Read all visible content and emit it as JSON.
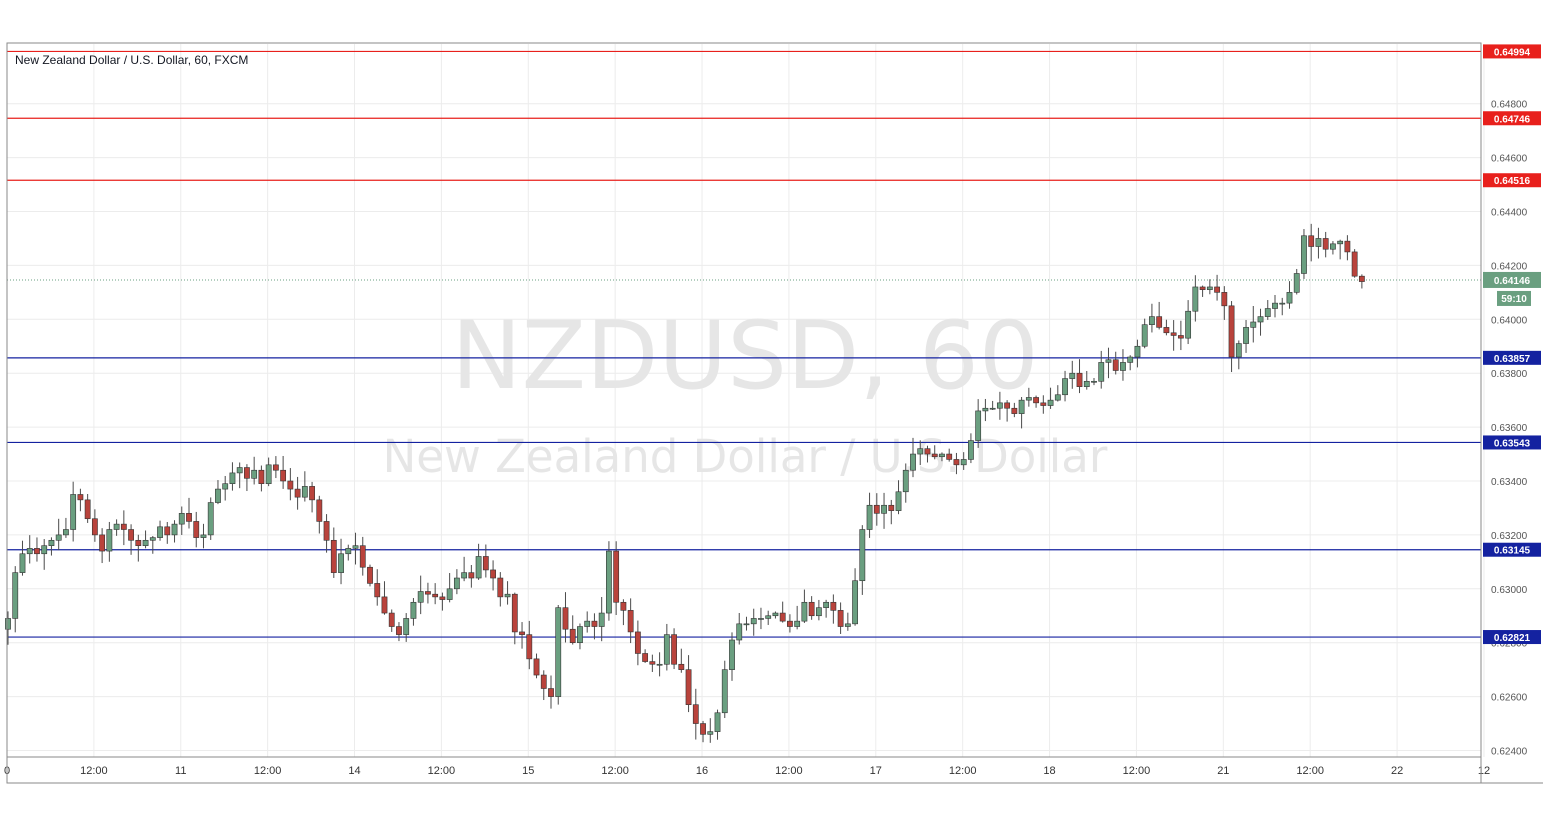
{
  "header": {
    "symbol_title": "New Zealand Dollar / U.S. Dollar, 60, FXCM"
  },
  "watermark": {
    "ticker": "NZDUSD, 60",
    "name": "New Zealand Dollar / U.S. Dollar"
  },
  "colors": {
    "background": "#ffffff",
    "grid": "#ececec",
    "up_candle": "#6a9f80",
    "down_candle": "#b9433c",
    "wick": "#4a4a4a",
    "resistance_line": "#e8201c",
    "support_line": "#1422a0",
    "current_price": "#6a9f80",
    "axis_text": "#555555",
    "watermark": "#e6e6e6"
  },
  "chart_data": {
    "type": "candlestick",
    "title": "New Zealand Dollar / U.S. Dollar, 60, FXCM",
    "timeframe": "60",
    "y_axis": {
      "ylim": [
        0.62385,
        0.6501
      ],
      "ticks": [
        0.624,
        0.626,
        0.628,
        0.63,
        0.632,
        0.634,
        0.636,
        0.638,
        0.64,
        0.642,
        0.644,
        0.646,
        0.648
      ],
      "tick_labels": [
        "0.62400",
        "0.62600",
        "0.62800",
        "0.63000",
        "0.63200",
        "0.63400",
        "0.63600",
        "0.63800",
        "0.64000",
        "0.64200",
        "0.64400",
        "0.64600",
        "0.64800"
      ]
    },
    "x_axis": {
      "tick_labels": [
        "0",
        "12:00",
        "11",
        "12:00",
        "14",
        "12:00",
        "15",
        "12:00",
        "16",
        "12:00",
        "17",
        "12:00",
        "18",
        "12:00",
        "21",
        "12:00",
        "22",
        "12"
      ],
      "tick_positions_in_bars": [
        0,
        12,
        24,
        36,
        48,
        60,
        72,
        84,
        96,
        108,
        120,
        132,
        144,
        156,
        168,
        180,
        192,
        204
      ]
    },
    "resistance_levels": [
      0.64994,
      0.64746,
      0.64516
    ],
    "resistance_labels": [
      "0.64994",
      "0.64746",
      "0.64516"
    ],
    "support_levels": [
      0.63857,
      0.63543,
      0.63145,
      0.62821
    ],
    "support_labels": [
      "0.63857",
      "0.63543",
      "0.63145",
      "0.62821"
    ],
    "current_price": 0.64146,
    "current_price_label": "0.64146",
    "countdown": "59:10",
    "grid": true,
    "close_path": [
      0.6289,
      0.6306,
      0.6313,
      0.6315,
      0.6313,
      0.6316,
      0.6318,
      0.632,
      0.6322,
      0.6335,
      0.6333,
      0.6326,
      0.632,
      0.6314,
      0.6322,
      0.6324,
      0.6322,
      0.6318,
      0.6316,
      0.6318,
      0.6319,
      0.6323,
      0.632,
      0.6324,
      0.6328,
      0.6325,
      0.6319,
      0.632,
      0.6332,
      0.6337,
      0.6339,
      0.6343,
      0.6345,
      0.6341,
      0.6344,
      0.6339,
      0.6346,
      0.6344,
      0.634,
      0.6337,
      0.6334,
      0.6338,
      0.6333,
      0.6325,
      0.6318,
      0.6306,
      0.6313,
      0.6315,
      0.6316,
      0.6308,
      0.6302,
      0.6297,
      0.6291,
      0.6286,
      0.6283,
      0.6289,
      0.6295,
      0.6299,
      0.6298,
      0.6297,
      0.6296,
      0.63,
      0.6304,
      0.6306,
      0.6304,
      0.6312,
      0.6307,
      0.6304,
      0.6297,
      0.6298,
      0.6284,
      0.6283,
      0.6274,
      0.6268,
      0.6263,
      0.626,
      0.6293,
      0.6285,
      0.628,
      0.6286,
      0.6288,
      0.6286,
      0.6291,
      0.6314,
      0.6295,
      0.6292,
      0.6284,
      0.6276,
      0.6273,
      0.6272,
      0.6272,
      0.6283,
      0.6272,
      0.627,
      0.6257,
      0.625,
      0.6246,
      0.6247,
      0.6254,
      0.627,
      0.6281,
      0.6287,
      0.6287,
      0.6289,
      0.6289,
      0.629,
      0.6291,
      0.6288,
      0.6286,
      0.6288,
      0.6295,
      0.629,
      0.6293,
      0.6295,
      0.6292,
      0.6286,
      0.6287,
      0.6303,
      0.6322,
      0.6331,
      0.6328,
      0.6331,
      0.6329,
      0.6336,
      0.6344,
      0.635,
      0.6352,
      0.635,
      0.6349,
      0.635,
      0.6348,
      0.6346,
      0.6348,
      0.6355,
      0.6366,
      0.6367,
      0.6367,
      0.6369,
      0.6367,
      0.6365,
      0.637,
      0.6371,
      0.6369,
      0.6368,
      0.637,
      0.6372,
      0.6378,
      0.638,
      0.6375,
      0.6377,
      0.6377,
      0.6384,
      0.6385,
      0.6381,
      0.6384,
      0.6386,
      0.639,
      0.6398,
      0.6401,
      0.6397,
      0.6395,
      0.6394,
      0.6393,
      0.6403,
      0.6412,
      0.6411,
      0.6412,
      0.641,
      0.6405,
      0.6386,
      0.6391,
      0.6397,
      0.6399,
      0.6401,
      0.6404,
      0.6406,
      0.6406,
      0.641,
      0.6417,
      0.6431,
      0.6427,
      0.643,
      0.6426,
      0.6428,
      0.6429,
      0.6425,
      0.6416,
      0.6414
    ]
  }
}
